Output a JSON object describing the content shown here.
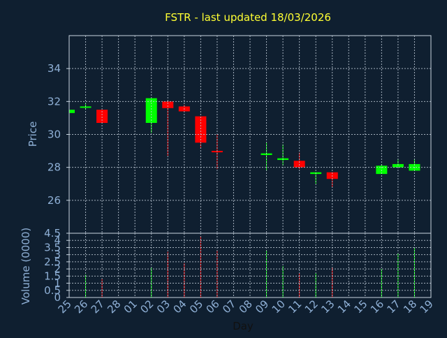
{
  "chart_data": {
    "type": "candlestick",
    "title": "FSTR - last updated 18/03/2026",
    "xlabel": "Day",
    "ylabel": "Price",
    "categories": [
      "25",
      "26",
      "27",
      "28",
      "01",
      "02",
      "03",
      "04",
      "05",
      "06",
      "07",
      "08",
      "09",
      "10",
      "11",
      "12",
      "13",
      "14",
      "15",
      "16",
      "17",
      "18",
      "19"
    ],
    "open": [
      31.3,
      31.65,
      31.5,
      null,
      null,
      30.7,
      32.0,
      31.7,
      31.1,
      29.0,
      null,
      null,
      28.75,
      28.45,
      28.4,
      27.6,
      27.7,
      null,
      null,
      27.6,
      28.0,
      27.8,
      null
    ],
    "high": [
      31.5,
      31.9,
      31.5,
      null,
      null,
      32.2,
      32.0,
      31.8,
      31.1,
      30.0,
      null,
      null,
      29.5,
      29.4,
      28.9,
      27.7,
      27.7,
      null,
      null,
      28.2,
      28.5,
      28.5,
      null
    ],
    "low": [
      31.3,
      31.5,
      30.7,
      null,
      null,
      30.1,
      28.7,
      31.4,
      29.2,
      27.9,
      null,
      null,
      27.8,
      28.1,
      27.9,
      27.0,
      26.8,
      null,
      null,
      27.6,
      28.0,
      27.8,
      null
    ],
    "close": [
      31.5,
      31.7,
      30.7,
      null,
      null,
      32.2,
      31.6,
      31.4,
      29.5,
      28.95,
      null,
      null,
      28.85,
      28.55,
      28.0,
      27.7,
      27.3,
      null,
      null,
      28.1,
      28.2,
      28.2,
      null
    ],
    "up_color": "#00ff00",
    "down_color": "#ff0000",
    "ylim": [
      24,
      36
    ],
    "yticks": [
      26,
      28,
      30,
      32,
      34
    ],
    "grid": true,
    "volume": {
      "ylabel": "Volume (0000)",
      "values": [
        null,
        1.6,
        1.3,
        null,
        null,
        2.1,
        3.2,
        2.4,
        4.3,
        3.3,
        null,
        null,
        3.3,
        2.2,
        1.7,
        1.7,
        2.1,
        null,
        null,
        2.0,
        3.1,
        3.5,
        null
      ],
      "ylim": [
        0,
        4.5
      ],
      "yticks": [
        0,
        0.5,
        1,
        1.5,
        2,
        2.5,
        3,
        3.5,
        4,
        4.5
      ]
    }
  }
}
